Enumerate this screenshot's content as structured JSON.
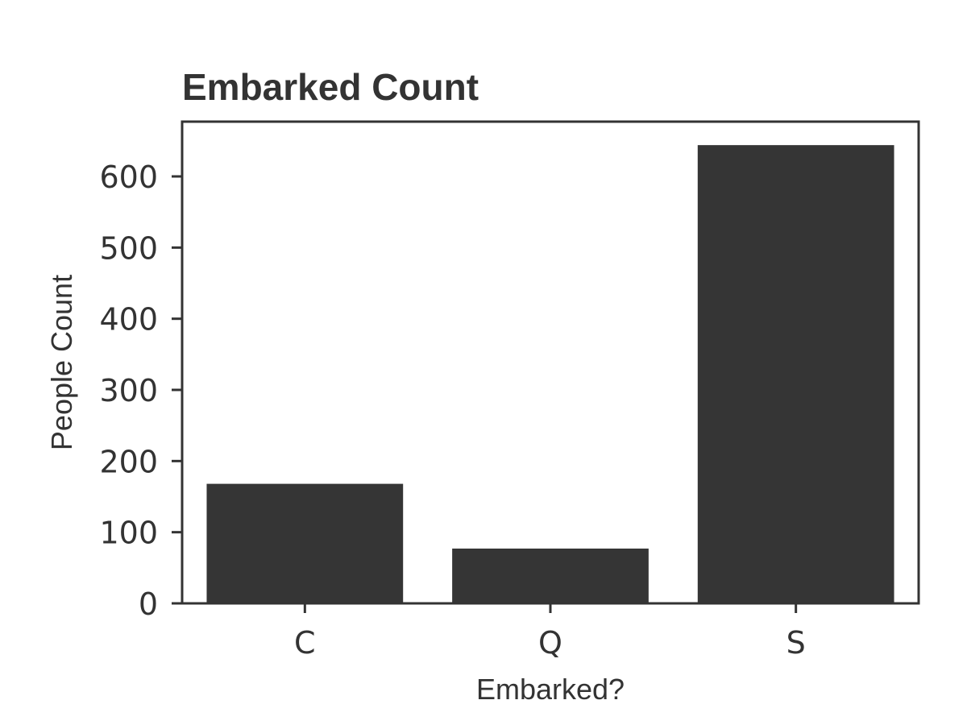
{
  "chart_data": {
    "type": "bar",
    "title": "Embarked Count",
    "xlabel": "Embarked?",
    "ylabel": "People Count",
    "categories": [
      "C",
      "Q",
      "S"
    ],
    "values": [
      168,
      77,
      644
    ],
    "ylim": [
      0,
      677
    ],
    "yticks": [
      0,
      100,
      200,
      300,
      400,
      500,
      600
    ],
    "bar_color": "#353535",
    "axis_color": "#333333",
    "grid": false,
    "legend": "none"
  }
}
